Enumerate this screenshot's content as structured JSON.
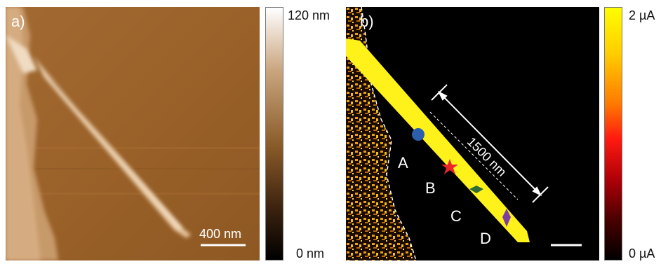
{
  "panel_a": {
    "label": "a)",
    "scalebar_label": "400 nm",
    "colorbar": {
      "max_label": "120 nm",
      "min_label": "0 nm"
    }
  },
  "panel_b": {
    "label": "b)",
    "measurement_label": "1500 nm",
    "colorbar": {
      "max_label": "2 µA",
      "min_label": "0 µA"
    },
    "points": [
      {
        "label": "A",
        "marker": "circle",
        "color": "#2b5fae"
      },
      {
        "label": "B",
        "marker": "star",
        "color": "#e8262a"
      },
      {
        "label": "C",
        "marker": "diamond",
        "color": "#2f6b35"
      },
      {
        "label": "D",
        "marker": "diamond",
        "color": "#7b3fa0"
      }
    ],
    "wire_color": "#fff21a"
  }
}
